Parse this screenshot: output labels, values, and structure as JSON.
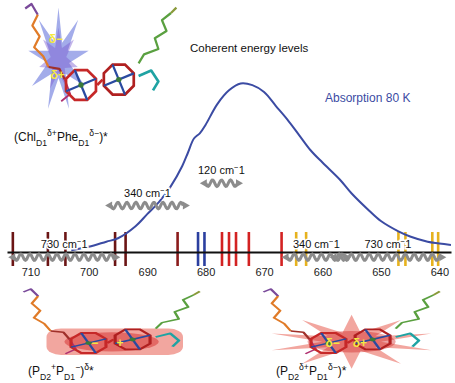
{
  "chart_data": {
    "type": "line",
    "xlim": [
      714,
      638
    ],
    "xticks": [
      710,
      700,
      690,
      680,
      670,
      660,
      650,
      640
    ],
    "ylim": [
      0,
      1
    ],
    "tick_labels": "x",
    "x": [
      703,
      700,
      697,
      695,
      692,
      690,
      688,
      686,
      684,
      683,
      682,
      681,
      680,
      678,
      676,
      674,
      672,
      670,
      668,
      666,
      664,
      662,
      660,
      657,
      655,
      652,
      650,
      647,
      645,
      642,
      640,
      638
    ],
    "series": [
      {
        "name": "Absorption 80 K",
        "color": "#3b4ba3",
        "values": [
          0.01,
          0.03,
          0.06,
          0.08,
          0.15,
          0.22,
          0.29,
          0.38,
          0.5,
          0.58,
          0.66,
          0.69,
          0.74,
          0.86,
          0.94,
          0.98,
          0.97,
          0.93,
          0.85,
          0.77,
          0.68,
          0.59,
          0.52,
          0.42,
          0.34,
          0.24,
          0.18,
          0.12,
          0.09,
          0.06,
          0.05,
          0.04
        ]
      }
    ],
    "annotations": [
      {
        "text": "Coherent energy levels"
      }
    ],
    "levels": [
      {
        "wavelength": 713,
        "color": "#6b1515"
      },
      {
        "wavelength": 707,
        "color": "#6b1515"
      },
      {
        "wavelength": 704,
        "color": "#6b1515"
      },
      {
        "wavelength": 695.5,
        "color": "#6b1515"
      },
      {
        "wavelength": 693.7,
        "color": "#6b1515"
      },
      {
        "wavelength": 684.8,
        "color": "#8b1c1c"
      },
      {
        "wavelength": 681.3,
        "color": "#2b3f9f"
      },
      {
        "wavelength": 680.2,
        "color": "#2b3f9f"
      },
      {
        "wavelength": 677.2,
        "color": "#d32222"
      },
      {
        "wavelength": 676,
        "color": "#d32222"
      },
      {
        "wavelength": 674.8,
        "color": "#d32222"
      },
      {
        "wavelength": 672.6,
        "color": "#d32222"
      },
      {
        "wavelength": 667,
        "color": "#d32222"
      },
      {
        "wavelength": 664.5,
        "color": "#e6b21e"
      },
      {
        "wavelength": 662.8,
        "color": "#e6b21e"
      },
      {
        "wavelength": 647,
        "color": "#e6b21e"
      },
      {
        "wavelength": 645.8,
        "color": "#e6b21e"
      },
      {
        "wavelength": 641.2,
        "color": "#e6b21e"
      },
      {
        "wavelength": 640.2,
        "color": "#e6b21e"
      }
    ],
    "beats": [
      {
        "text": "730 cm−1",
        "x": [
          713.8,
          694.6
        ],
        "y": -0.03
      },
      {
        "text": "340 cm−1",
        "x": [
          697.2,
          682.7
        ],
        "y": 0.27
      },
      {
        "text": "120 cm−1",
        "x": [
          681,
          673.6
        ],
        "y": 0.4
      },
      {
        "text": "340 cm−1",
        "x": [
          667,
          655.1
        ],
        "y": -0.03
      },
      {
        "text": "730 cm−1",
        "x": [
          658.8,
          638.8
        ],
        "y": -0.03
      }
    ],
    "structures": [
      {
        "label": "(ChlD1δ+PheD1δ−)*",
        "charges": [
          "δ−",
          "δ+"
        ]
      },
      {
        "label": "(PD2+PD1−)δ*",
        "charges": [
          "−",
          "+"
        ]
      },
      {
        "label": "(PD2δ+PD1δ−)*",
        "charges": [
          "δ−",
          "δ+"
        ]
      }
    ]
  }
}
